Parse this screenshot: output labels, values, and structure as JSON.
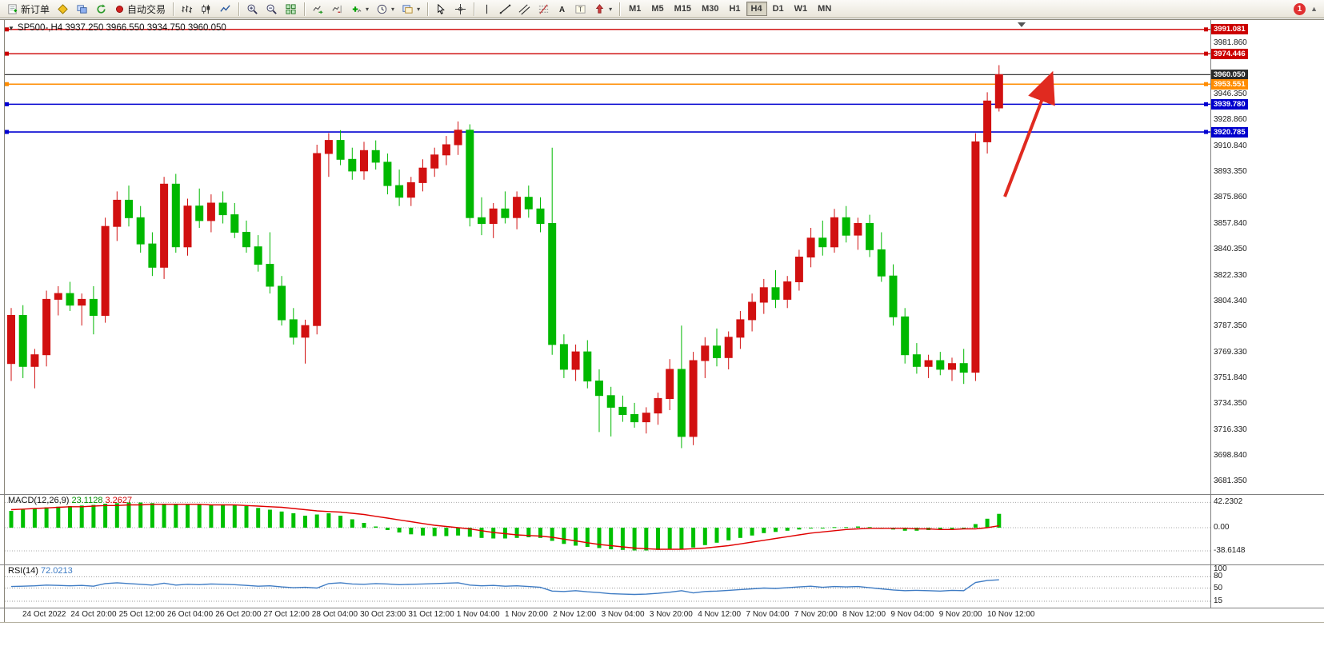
{
  "toolbar": {
    "new_order_label": "新订单",
    "auto_trading_label": "自动交易",
    "timeframes": [
      "M1",
      "M5",
      "M15",
      "M30",
      "H1",
      "H4",
      "D1",
      "W1",
      "MN"
    ],
    "active_timeframe": "H4",
    "notification_count": "1"
  },
  "chart": {
    "title": "SP500-,H4  3937.250 3966.550 3934.750 3960.050",
    "symbol": "SP500-",
    "period": "H4",
    "colors": {
      "up_candle": "#d11010",
      "down_candle": "#00b800",
      "background": "#ffffff",
      "red_line": "#cc0000",
      "orange_line": "#ff8c00",
      "blue_line": "#0000d0",
      "current_price_line": "#3a3a3a",
      "arrow": "#e02a20"
    },
    "hlines": [
      {
        "price": 3991.081,
        "color": "#cc0000",
        "width": 1.4,
        "handles": true
      },
      {
        "price": 3974.446,
        "color": "#cc0000",
        "width": 1.4,
        "handles": true
      },
      {
        "price": 3960.05,
        "color": "#3a3a3a",
        "width": 1.2,
        "handles": false
      },
      {
        "price": 3953.551,
        "color": "#ff8c00",
        "width": 1.6,
        "handles": true
      },
      {
        "price": 3939.78,
        "color": "#0000d0",
        "width": 1.6,
        "handles": true
      },
      {
        "price": 3920.785,
        "color": "#0000d0",
        "width": 1.6,
        "handles": true
      }
    ],
    "price_axis": {
      "ticks": [
        {
          "v": 3981.86,
          "label": "3981.860"
        },
        {
          "v": 3946.35,
          "label": "3946.350"
        },
        {
          "v": 3928.86,
          "label": "3928.860"
        },
        {
          "v": 3910.84,
          "label": "3910.840"
        },
        {
          "v": 3893.35,
          "label": "3893.350"
        },
        {
          "v": 3875.86,
          "label": "3875.860"
        },
        {
          "v": 3857.84,
          "label": "3857.840"
        },
        {
          "v": 3840.35,
          "label": "3840.350"
        },
        {
          "v": 3822.33,
          "label": "3822.330"
        },
        {
          "v": 3804.34,
          "label": "3804.340"
        },
        {
          "v": 3787.35,
          "label": "3787.350"
        },
        {
          "v": 3769.33,
          "label": "3769.330"
        },
        {
          "v": 3751.84,
          "label": "3751.840"
        },
        {
          "v": 3734.35,
          "label": "3734.350"
        },
        {
          "v": 3716.33,
          "label": "3716.330"
        },
        {
          "v": 3698.84,
          "label": "3698.840"
        },
        {
          "v": 3681.35,
          "label": "3681.350"
        }
      ],
      "badges": [
        {
          "v": 3991.081,
          "label": "3991.081",
          "bg": "#cc0000"
        },
        {
          "v": 3974.446,
          "label": "3974.446",
          "bg": "#cc0000"
        },
        {
          "v": 3960.05,
          "label": "3960.050",
          "bg": "#2b2b2b"
        },
        {
          "v": 3953.551,
          "label": "3953.551",
          "bg": "#ff8c00"
        },
        {
          "v": 3939.78,
          "label": "3939.780",
          "bg": "#0000cd"
        },
        {
          "v": 3920.785,
          "label": "3920.785",
          "bg": "#0000cd"
        }
      ]
    },
    "time_axis": {
      "labels": [
        "24 Oct 2022",
        "24 Oct 20:00",
        "25 Oct 12:00",
        "26 Oct 04:00",
        "26 Oct 20:00",
        "27 Oct 12:00",
        "28 Oct 04:00",
        "30 Oct 23:00",
        "31 Oct 12:00",
        "1 Nov 04:00",
        "1 Nov 20:00",
        "2 Nov 12:00",
        "3 Nov 04:00",
        "3 Nov 20:00",
        "4 Nov 12:00",
        "7 Nov 04:00",
        "7 Nov 20:00",
        "8 Nov 12:00",
        "9 Nov 04:00",
        "9 Nov 20:00",
        "10 Nov 12:00"
      ]
    }
  },
  "macd": {
    "name": "MACD(12,26,9)",
    "main_value": "23.1128",
    "signal_value": "3.2627",
    "axis": [
      {
        "v": 42.2302,
        "label": "42.2302"
      },
      {
        "v": 0,
        "label": "0.00"
      },
      {
        "v": -38.6148,
        "label": "-38.6148"
      }
    ],
    "histogram_color": "#00c000",
    "signal_color": "#e00000"
  },
  "rsi": {
    "name": "RSI(14)",
    "value": "72.0213",
    "axis": [
      {
        "v": 100,
        "label": "100"
      },
      {
        "v": 80,
        "label": "80"
      },
      {
        "v": 50,
        "label": "50"
      },
      {
        "v": 15,
        "label": "15"
      }
    ],
    "levels": [
      80,
      50,
      15
    ],
    "line_color": "#3f7cc4"
  },
  "chart_data": {
    "type": "candlestick",
    "symbol": "SP500-",
    "timeframe": "H4",
    "current_ohlc": {
      "open": "3937.250",
      "high": "3966.550",
      "low": "3934.750",
      "close": "3960.050"
    },
    "price_range": [
      3673,
      3997
    ],
    "up_color_convention": "red-up green-down (CN)",
    "candles": [
      [
        3762,
        3800,
        3750,
        3795
      ],
      [
        3795,
        3802,
        3752,
        3760
      ],
      [
        3760,
        3772,
        3745,
        3768
      ],
      [
        3768,
        3812,
        3760,
        3806
      ],
      [
        3806,
        3815,
        3795,
        3810
      ],
      [
        3810,
        3818,
        3798,
        3802
      ],
      [
        3802,
        3810,
        3788,
        3806
      ],
      [
        3806,
        3815,
        3782,
        3795
      ],
      [
        3795,
        3862,
        3790,
        3856
      ],
      [
        3856,
        3880,
        3846,
        3874
      ],
      [
        3874,
        3884,
        3856,
        3862
      ],
      [
        3862,
        3870,
        3838,
        3844
      ],
      [
        3844,
        3852,
        3822,
        3828
      ],
      [
        3828,
        3890,
        3820,
        3885
      ],
      [
        3885,
        3892,
        3838,
        3842
      ],
      [
        3842,
        3875,
        3836,
        3870
      ],
      [
        3870,
        3882,
        3855,
        3860
      ],
      [
        3860,
        3878,
        3852,
        3872
      ],
      [
        3872,
        3880,
        3858,
        3864
      ],
      [
        3864,
        3872,
        3848,
        3852
      ],
      [
        3852,
        3860,
        3838,
        3842
      ],
      [
        3842,
        3850,
        3825,
        3830
      ],
      [
        3830,
        3852,
        3810,
        3815
      ],
      [
        3815,
        3822,
        3788,
        3792
      ],
      [
        3792,
        3800,
        3775,
        3780
      ],
      [
        3780,
        3792,
        3762,
        3788
      ],
      [
        3788,
        3912,
        3782,
        3906
      ],
      [
        3906,
        3920,
        3890,
        3915
      ],
      [
        3915,
        3922,
        3898,
        3902
      ],
      [
        3902,
        3910,
        3888,
        3894
      ],
      [
        3894,
        3914,
        3888,
        3908
      ],
      [
        3908,
        3915,
        3895,
        3900
      ],
      [
        3900,
        3906,
        3878,
        3884
      ],
      [
        3884,
        3895,
        3870,
        3876
      ],
      [
        3876,
        3890,
        3870,
        3886
      ],
      [
        3886,
        3902,
        3880,
        3896
      ],
      [
        3896,
        3910,
        3890,
        3905
      ],
      [
        3905,
        3918,
        3898,
        3912
      ],
      [
        3912,
        3928,
        3905,
        3922
      ],
      [
        3922,
        3926,
        3856,
        3862
      ],
      [
        3862,
        3876,
        3850,
        3858
      ],
      [
        3858,
        3872,
        3848,
        3868
      ],
      [
        3868,
        3880,
        3858,
        3862
      ],
      [
        3862,
        3880,
        3854,
        3876
      ],
      [
        3876,
        3884,
        3862,
        3868
      ],
      [
        3868,
        3876,
        3852,
        3858
      ],
      [
        3858,
        3910,
        3768,
        3775
      ],
      [
        3775,
        3782,
        3752,
        3758
      ],
      [
        3758,
        3775,
        3750,
        3770
      ],
      [
        3770,
        3778,
        3745,
        3750
      ],
      [
        3750,
        3758,
        3715,
        3740
      ],
      [
        3740,
        3746,
        3712,
        3732
      ],
      [
        3732,
        3740,
        3722,
        3727
      ],
      [
        3727,
        3735,
        3718,
        3722
      ],
      [
        3722,
        3732,
        3714,
        3728
      ],
      [
        3728,
        3742,
        3720,
        3738
      ],
      [
        3738,
        3765,
        3730,
        3758
      ],
      [
        3758,
        3788,
        3704,
        3712
      ],
      [
        3712,
        3770,
        3706,
        3764
      ],
      [
        3764,
        3780,
        3752,
        3774
      ],
      [
        3774,
        3786,
        3760,
        3766
      ],
      [
        3766,
        3784,
        3758,
        3780
      ],
      [
        3780,
        3798,
        3772,
        3792
      ],
      [
        3792,
        3810,
        3784,
        3804
      ],
      [
        3804,
        3820,
        3796,
        3814
      ],
      [
        3814,
        3826,
        3800,
        3806
      ],
      [
        3806,
        3822,
        3800,
        3818
      ],
      [
        3818,
        3840,
        3812,
        3835
      ],
      [
        3835,
        3855,
        3828,
        3848
      ],
      [
        3848,
        3860,
        3836,
        3842
      ],
      [
        3842,
        3868,
        3838,
        3862
      ],
      [
        3862,
        3870,
        3845,
        3850
      ],
      [
        3850,
        3862,
        3840,
        3858
      ],
      [
        3858,
        3864,
        3835,
        3840
      ],
      [
        3840,
        3852,
        3818,
        3822
      ],
      [
        3822,
        3830,
        3788,
        3794
      ],
      [
        3794,
        3800,
        3762,
        3768
      ],
      [
        3768,
        3776,
        3755,
        3760
      ],
      [
        3760,
        3768,
        3752,
        3764
      ],
      [
        3764,
        3770,
        3754,
        3758
      ],
      [
        3758,
        3766,
        3750,
        3762
      ],
      [
        3762,
        3772,
        3748,
        3756
      ],
      [
        3756,
        3920,
        3750,
        3914
      ],
      [
        3914,
        3948,
        3906,
        3942
      ],
      [
        3937.25,
        3966.55,
        3934.75,
        3960.05
      ]
    ],
    "indicators": {
      "macd_histogram": [
        28,
        30,
        32,
        34,
        35,
        36,
        37,
        38,
        40,
        41,
        42,
        42,
        41,
        40,
        40,
        39,
        38,
        38,
        39,
        38,
        36,
        33,
        30,
        27,
        24,
        20,
        22,
        24,
        20,
        14,
        8,
        2,
        -4,
        -8,
        -11,
        -13,
        -14,
        -14,
        -13,
        -15,
        -17,
        -18,
        -18,
        -17,
        -16,
        -17,
        -22,
        -27,
        -30,
        -32,
        -34,
        -36,
        -37,
        -38,
        -38,
        -37,
        -35,
        -36,
        -33,
        -29,
        -25,
        -21,
        -17,
        -13,
        -9,
        -7,
        -5,
        -3,
        -1,
        -1,
        1,
        1,
        2,
        1,
        -1,
        -3,
        -5,
        -5,
        -4,
        -3,
        -2,
        -1,
        6,
        15,
        23.11
      ],
      "macd_signal": [
        30,
        31,
        32,
        33,
        34,
        35,
        35,
        36,
        37,
        37,
        38,
        38,
        39,
        39,
        39,
        39,
        39,
        38,
        38,
        38,
        37,
        36,
        35,
        34,
        32,
        30,
        28,
        27,
        26,
        24,
        22,
        19,
        16,
        13,
        10,
        7,
        4,
        2,
        0,
        -2,
        -5,
        -8,
        -10,
        -12,
        -13,
        -14,
        -16,
        -19,
        -22,
        -25,
        -28,
        -30,
        -32,
        -34,
        -35,
        -36,
        -36,
        -36,
        -35,
        -34,
        -32,
        -30,
        -27,
        -24,
        -21,
        -18,
        -15,
        -12,
        -9,
        -7,
        -5,
        -3,
        -2,
        -1,
        -1,
        -1,
        -1,
        -2,
        -2,
        -3,
        -3,
        -2,
        -2,
        0,
        3.26
      ],
      "rsi": [
        54,
        55,
        56,
        58,
        57,
        56,
        57,
        55,
        62,
        64,
        62,
        60,
        58,
        63,
        58,
        60,
        59,
        61,
        60,
        59,
        57,
        55,
        56,
        53,
        51,
        52,
        50,
        62,
        64,
        61,
        60,
        62,
        61,
        59,
        60,
        61,
        62,
        63,
        64,
        58,
        56,
        57,
        55,
        56,
        54,
        52,
        42,
        41,
        43,
        40,
        38,
        35,
        34,
        33,
        34,
        36,
        39,
        43,
        37,
        41,
        42,
        44,
        46,
        48,
        50,
        49,
        51,
        53,
        55,
        52,
        54,
        53,
        54,
        51,
        48,
        45,
        43,
        44,
        43,
        42,
        44,
        43,
        65,
        70,
        72.02
      ]
    }
  }
}
